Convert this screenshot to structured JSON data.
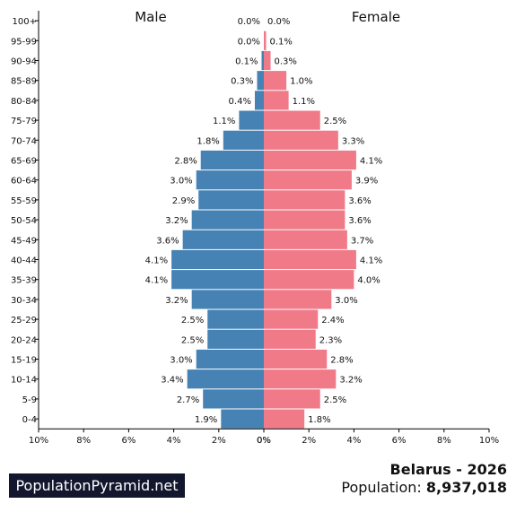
{
  "chart_data": {
    "type": "bar",
    "orientation": "horizontal-pyramid",
    "male_label": "Male",
    "female_label": "Female",
    "categories": [
      "100+",
      "95-99",
      "90-94",
      "85-89",
      "80-84",
      "75-79",
      "70-74",
      "65-69",
      "60-64",
      "55-59",
      "50-54",
      "45-49",
      "40-44",
      "35-39",
      "30-34",
      "25-29",
      "20-24",
      "15-19",
      "10-14",
      "5-9",
      "0-4"
    ],
    "series": [
      {
        "name": "Male",
        "values": [
          0.0,
          0.0,
          0.1,
          0.3,
          0.4,
          1.1,
          1.8,
          2.8,
          3.0,
          2.9,
          3.2,
          3.6,
          4.1,
          4.1,
          3.2,
          2.5,
          2.5,
          3.0,
          3.4,
          2.7,
          1.9
        ],
        "labels": [
          "0.0%",
          "0.0%",
          "0.1%",
          "0.3%",
          "0.4%",
          "1.1%",
          "1.8%",
          "2.8%",
          "3.0%",
          "2.9%",
          "3.2%",
          "3.6%",
          "4.1%",
          "4.1%",
          "3.2%",
          "2.5%",
          "2.5%",
          "3.0%",
          "3.4%",
          "2.7%",
          "1.9%"
        ]
      },
      {
        "name": "Female",
        "values": [
          0.0,
          0.1,
          0.3,
          1.0,
          1.1,
          2.5,
          3.3,
          4.1,
          3.9,
          3.6,
          3.6,
          3.7,
          4.1,
          4.0,
          3.0,
          2.4,
          2.3,
          2.8,
          3.2,
          2.5,
          1.8
        ],
        "labels": [
          "0.0%",
          "0.1%",
          "0.3%",
          "1.0%",
          "1.1%",
          "2.5%",
          "3.3%",
          "4.1%",
          "3.9%",
          "3.6%",
          "3.6%",
          "3.7%",
          "4.1%",
          "4.0%",
          "3.0%",
          "2.4%",
          "2.3%",
          "2.8%",
          "3.2%",
          "2.5%",
          "1.8%"
        ]
      }
    ],
    "x_ticks": [
      "10%",
      "8%",
      "6%",
      "4%",
      "2%",
      "0%",
      "0%",
      "2%",
      "4%",
      "6%",
      "8%",
      "10%"
    ],
    "xlim": [
      -10,
      10
    ],
    "colors": {
      "male": "#4682b4",
      "female": "#f07a88"
    }
  },
  "footer": {
    "brand": "PopulationPyramid.net",
    "country_year": "Belarus - 2026",
    "population_label": "Population:",
    "population_value": "8,937,018"
  }
}
